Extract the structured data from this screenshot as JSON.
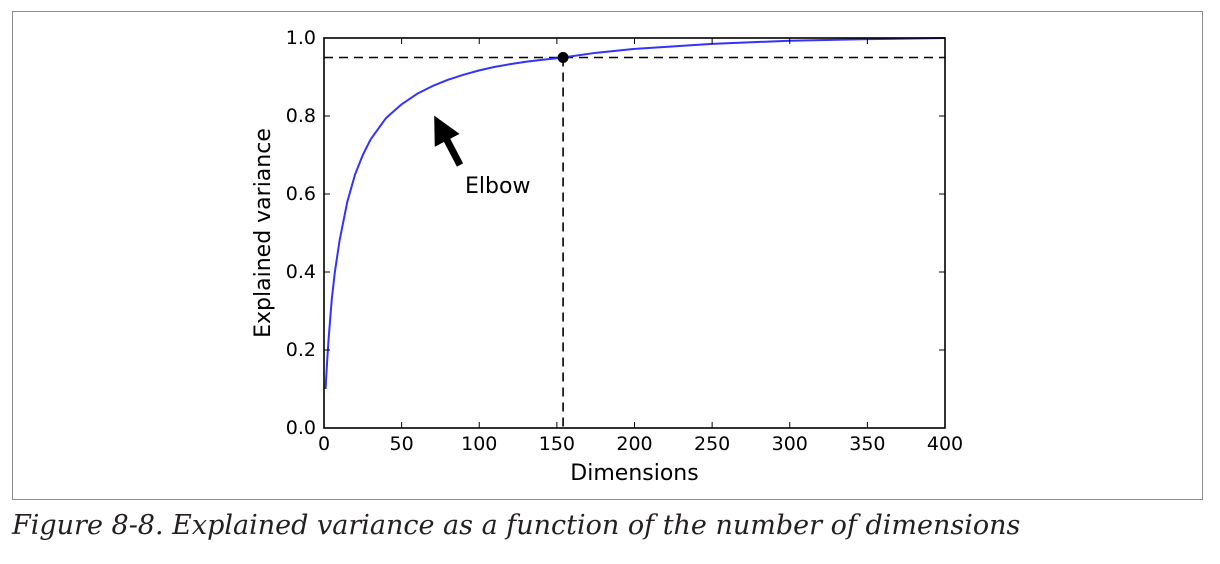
{
  "caption": "Figure 8-8. Explained variance as a function of the number of dimensions",
  "chart_data": {
    "type": "line",
    "xlabel": "Dimensions",
    "ylabel": "Explained variance",
    "xlim": [
      0,
      400
    ],
    "ylim": [
      0.0,
      1.0
    ],
    "xticks": [
      0,
      50,
      100,
      150,
      200,
      250,
      300,
      350,
      400
    ],
    "xtick_labels": [
      "0",
      "50",
      "100",
      "150",
      "200",
      "250",
      "300",
      "350",
      "400"
    ],
    "yticks": [
      0.0,
      0.2,
      0.4,
      0.6,
      0.8,
      1.0
    ],
    "ytick_labels": [
      "0.0",
      "0.2",
      "0.4",
      "0.6",
      "0.8",
      "1.0"
    ],
    "grid": false,
    "series": [
      {
        "color": "#3333ff",
        "x": [
          1,
          2,
          3,
          4,
          5,
          7,
          10,
          15,
          20,
          25,
          30,
          40,
          50,
          60,
          70,
          80,
          90,
          100,
          110,
          120,
          130,
          140,
          150,
          154,
          175,
          200,
          250,
          300,
          350,
          400
        ],
        "y": [
          0.1,
          0.17,
          0.23,
          0.28,
          0.33,
          0.4,
          0.48,
          0.58,
          0.65,
          0.7,
          0.74,
          0.795,
          0.83,
          0.857,
          0.877,
          0.893,
          0.906,
          0.917,
          0.926,
          0.933,
          0.939,
          0.944,
          0.948,
          0.95,
          0.962,
          0.972,
          0.985,
          0.993,
          0.997,
          1.0
        ]
      }
    ],
    "reference_lines": {
      "horizontal_y": 0.95,
      "vertical_x": 154,
      "style": "dashed",
      "color": "#000000"
    },
    "marker_point": {
      "x": 154,
      "y": 0.95,
      "color": "#000000"
    },
    "annotation": {
      "text": "Elbow",
      "text_x": 110,
      "text_y": 0.62,
      "arrow_to_x": 70,
      "arrow_to_y": 0.8,
      "arrow_color": "#000000"
    }
  }
}
